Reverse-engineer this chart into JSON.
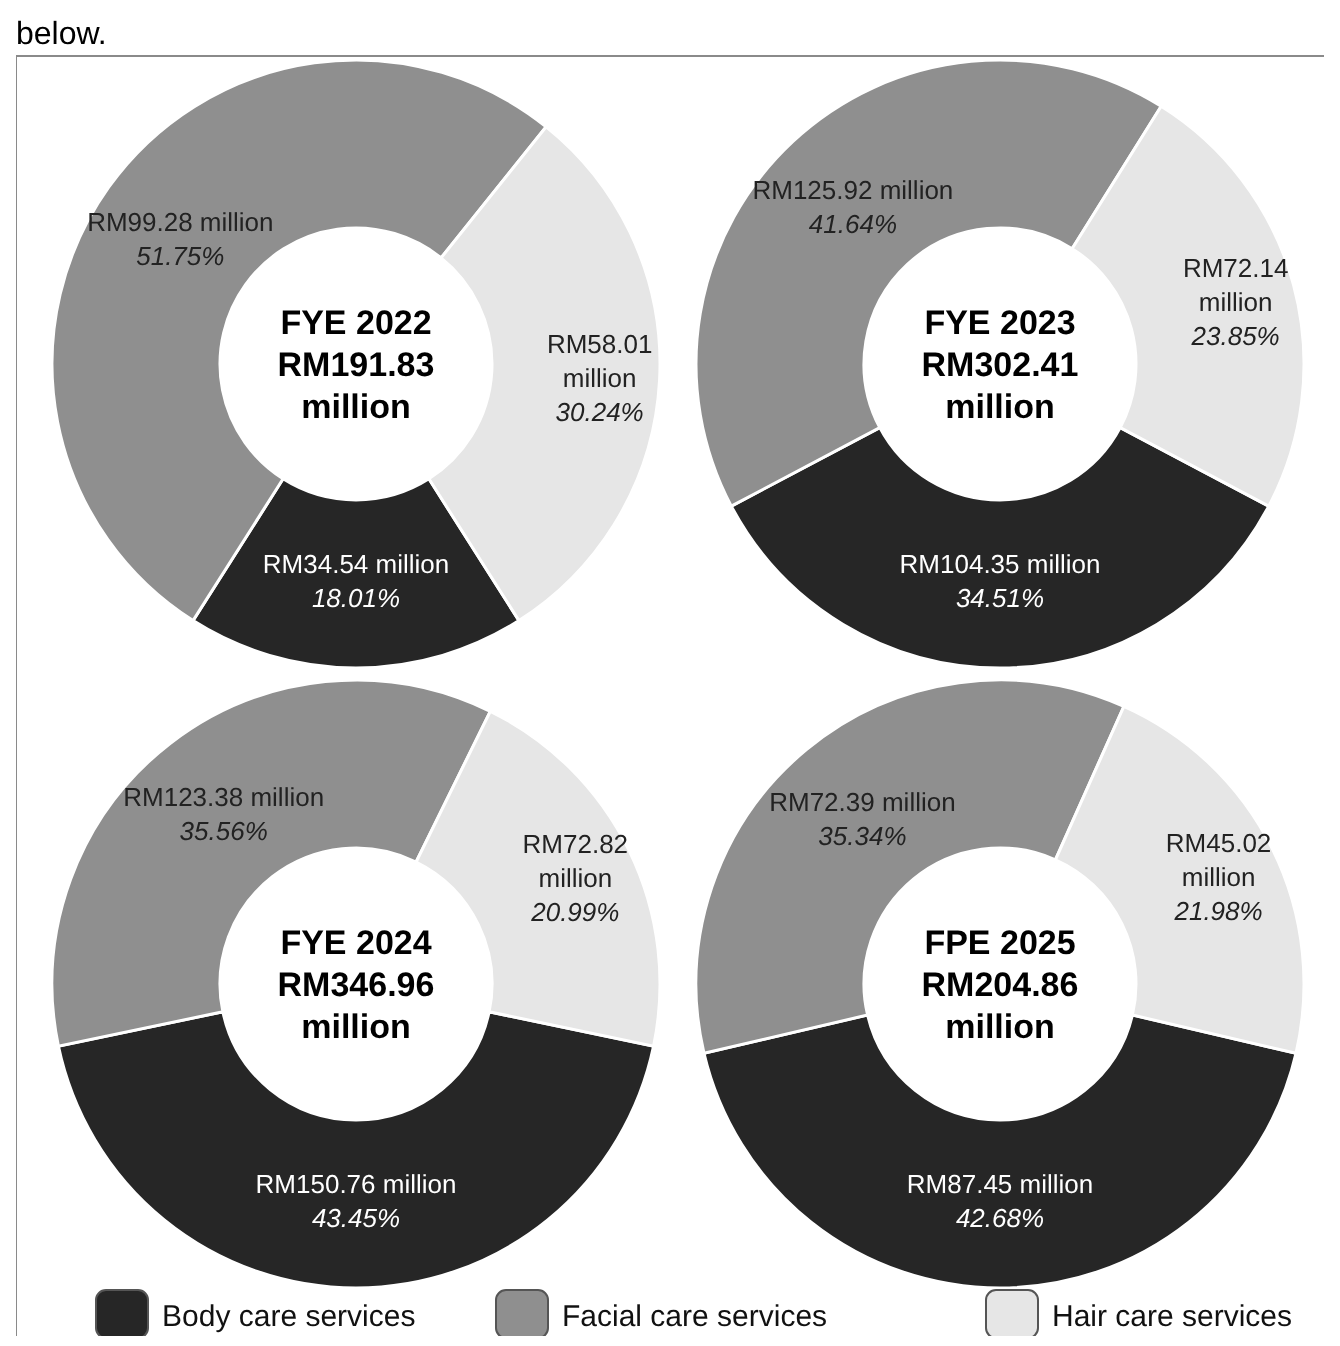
{
  "chart_data": [
    {
      "type": "donut",
      "title": "FYE 2022",
      "subtitle": "RM191.83 million",
      "annotations": [
        "below."
      ],
      "legend": "bottom",
      "categories": [
        "Body care services",
        "Facial care services",
        "Hair care services"
      ],
      "values": [
        18.01,
        51.75,
        30.24
      ],
      "colors": [
        "#262626",
        "#8f8f8f",
        "#e6e6e6"
      ],
      "value_labels": [
        "RM34.54 million\n18.01%",
        "RM99.28 million\n51.75%",
        "RM58.01\nmillion\n30.24%"
      ]
    },
    {
      "type": "donut",
      "title": "FYE 2023",
      "subtitle": "RM302.41 million",
      "values": [
        34.51,
        41.64,
        23.85
      ],
      "colors": [
        "#262626",
        "#8f8f8f",
        "#e6e6e6"
      ],
      "value_labels": [
        "RM104.35 million\n34.51%",
        "RM125.92 million\n41.64%",
        "RM72.14\nmillion\n23.85%"
      ]
    },
    {
      "type": "donut",
      "title": "FYE 2024",
      "subtitle": "RM346.96 million",
      "values": [
        43.45,
        35.56,
        20.99
      ],
      "colors": [
        "#262626",
        "#8f8f8f",
        "#e6e6e6"
      ],
      "value_labels": [
        "RM150.76 million\n43.45%",
        "RM123.38 million\n35.56%",
        "RM72.82\nmillion\n20.99%"
      ]
    },
    {
      "type": "donut",
      "title": "FPE 2025",
      "subtitle": "RM204.86 million",
      "values": [
        42.68,
        35.34,
        21.98
      ],
      "colors": [
        "#262626",
        "#8f8f8f",
        "#e6e6e6"
      ],
      "value_labels": [
        "RM87.45 million\n42.68%",
        "RM72.39 million\n35.34%",
        "RM45.02\nmillion\n21.98%"
      ]
    }
  ]
}
